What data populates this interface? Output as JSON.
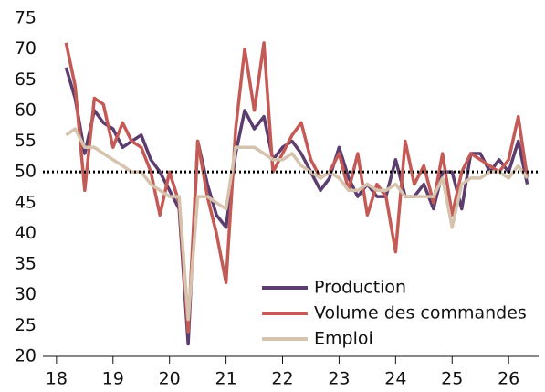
{
  "chart_data": {
    "type": "line",
    "x": [
      18.17,
      18.33,
      18.5,
      18.67,
      18.83,
      19,
      19.17,
      19.33,
      19.5,
      19.67,
      19.83,
      20,
      20.17,
      20.33,
      20.5,
      20.67,
      20.83,
      21,
      21.17,
      21.33,
      21.5,
      21.67,
      21.83,
      22,
      22.17,
      22.33,
      22.5,
      22.67,
      22.83,
      23,
      23.17,
      23.33,
      23.5,
      23.67,
      23.83,
      24,
      24.17,
      24.33,
      24.5,
      24.67,
      24.83,
      25,
      25.17,
      25.33,
      25.5,
      25.67,
      25.83,
      26,
      26.17,
      26.33
    ],
    "series": [
      {
        "name": "Production",
        "color": "#5b3d6e",
        "values": [
          67,
          62,
          53,
          60,
          58,
          57,
          54,
          55,
          56,
          52,
          50,
          47,
          44,
          22,
          55,
          48,
          43,
          41,
          53,
          60,
          57,
          59,
          52,
          54,
          55,
          53,
          50,
          47,
          49,
          54,
          49,
          46,
          48,
          46,
          46,
          52,
          46,
          46,
          48,
          44,
          50,
          50,
          44,
          53,
          53,
          50,
          52,
          50,
          55,
          48
        ]
      },
      {
        "name": "Volume des commandes",
        "color": "#c45a55",
        "values": [
          71,
          64,
          47,
          62,
          61,
          54,
          58,
          55,
          54,
          50,
          43,
          50,
          45,
          24,
          55,
          46,
          40,
          32,
          57,
          70,
          60,
          71,
          50,
          53,
          56,
          58,
          52,
          49,
          50,
          53,
          47,
          53,
          43,
          48,
          46,
          37,
          55,
          48,
          51,
          45,
          53,
          43,
          50,
          53,
          52,
          51,
          50,
          52,
          59,
          49
        ]
      },
      {
        "name": "Emploi",
        "color": "#d6c3ad",
        "values": [
          56,
          57,
          54,
          54,
          53,
          52,
          51,
          50,
          50,
          48,
          47,
          46,
          46,
          26,
          46,
          46,
          45,
          44,
          54,
          54,
          54,
          53,
          52,
          52,
          53,
          51,
          50,
          49,
          50,
          49,
          47,
          47,
          48,
          47,
          47,
          48,
          46,
          46,
          46,
          46,
          49,
          41,
          48,
          49,
          49,
          50,
          50,
          49,
          51,
          49
        ]
      }
    ],
    "xlim": [
      17.76,
      26.53
    ],
    "xticks": [
      {
        "value": 18,
        "label": "18"
      },
      {
        "value": 19,
        "label": "19"
      },
      {
        "value": 20,
        "label": "20"
      },
      {
        "value": 21,
        "label": "21"
      },
      {
        "value": 22,
        "label": "22"
      },
      {
        "value": 23,
        "label": "23"
      },
      {
        "value": 24,
        "label": "24"
      },
      {
        "value": 25,
        "label": "25"
      },
      {
        "value": 26,
        "label": "26"
      }
    ],
    "ylim": [
      20,
      75
    ],
    "yticks": [
      20,
      25,
      30,
      35,
      40,
      45,
      50,
      55,
      60,
      65,
      70,
      75
    ],
    "hline": 50,
    "grid": false
  }
}
